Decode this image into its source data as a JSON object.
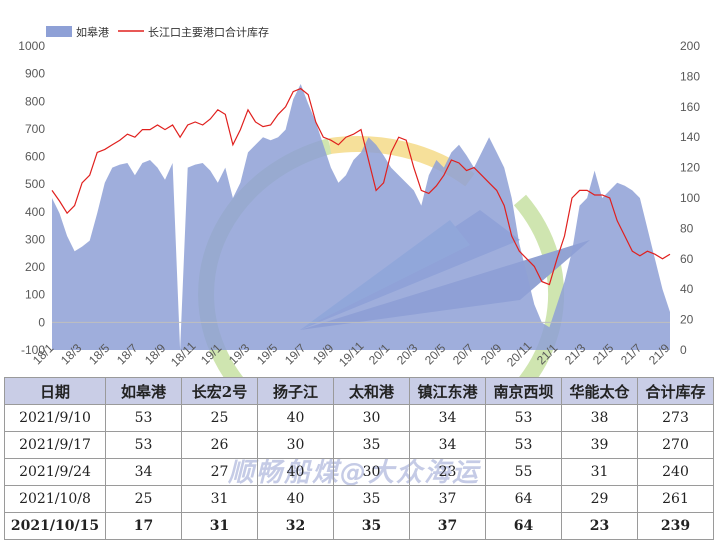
{
  "chart_data": {
    "type": "area",
    "legend": {
      "placement": "top-left",
      "items": [
        {
          "name": "如皋港",
          "kind": "area",
          "color": "#8ea0d6"
        },
        {
          "name": "长江口主要港口合计库存",
          "kind": "line",
          "color": "#e0201e"
        }
      ]
    },
    "y_left": {
      "ticks": [
        "1000",
        "900",
        "800",
        "700",
        "600",
        "500",
        "400",
        "300",
        "200",
        "100",
        "0",
        "-100"
      ],
      "min": -100,
      "max": 1000
    },
    "y_right": {
      "ticks": [
        "200",
        "180",
        "160",
        "140",
        "120",
        "100",
        "80",
        "60",
        "40",
        "20",
        "0"
      ],
      "min": 0,
      "max": 200
    },
    "x_ticks": [
      "18/1",
      "18/3",
      "18/5",
      "18/7",
      "18/9",
      "18/11",
      "19/1",
      "19/3",
      "19/5",
      "19/7",
      "19/9",
      "19/11",
      "20/1",
      "20/3",
      "20/5",
      "20/7",
      "20/9",
      "20/11",
      "21/1",
      "21/3",
      "21/5",
      "21/7",
      "21/9"
    ],
    "series": [
      {
        "name": "如皋港",
        "axis": "right",
        "values": [
          100,
          90,
          75,
          65,
          68,
          72,
          90,
          110,
          120,
          122,
          123,
          115,
          123,
          125,
          120,
          112,
          123,
          0,
          120,
          122,
          123,
          118,
          110,
          120,
          100,
          110,
          130,
          135,
          140,
          138,
          140,
          145,
          165,
          175,
          162,
          150,
          135,
          120,
          110,
          115,
          125,
          130,
          140,
          135,
          128,
          120,
          115,
          110,
          105,
          95,
          115,
          125,
          120,
          130,
          135,
          128,
          120,
          130,
          140,
          130,
          120,
          100,
          70,
          50,
          30,
          18,
          15,
          30,
          45,
          65,
          95,
          100,
          118,
          100,
          105,
          110,
          108,
          105,
          100,
          80,
          60,
          40,
          25
        ]
      },
      {
        "name": "长江口主要港口合计库存",
        "axis": "right",
        "values": [
          105,
          98,
          90,
          95,
          110,
          115,
          130,
          132,
          135,
          138,
          142,
          140,
          145,
          145,
          148,
          145,
          148,
          140,
          148,
          150,
          148,
          152,
          158,
          155,
          135,
          145,
          158,
          150,
          147,
          148,
          155,
          160,
          170,
          172,
          168,
          150,
          140,
          138,
          135,
          140,
          142,
          145,
          125,
          105,
          110,
          130,
          140,
          138,
          120,
          105,
          103,
          108,
          115,
          125,
          123,
          118,
          120,
          115,
          110,
          105,
          95,
          75,
          65,
          60,
          55,
          45,
          43,
          60,
          75,
          100,
          105,
          105,
          102,
          102,
          100,
          85,
          75,
          65,
          62,
          65,
          63,
          60,
          63
        ]
      }
    ]
  },
  "table": {
    "headers": [
      "日期",
      "如皋港",
      "长宏2号",
      "扬子江",
      "太和港",
      "镇江东港",
      "南京西坝",
      "华能太仓",
      "合计库存"
    ],
    "rows": [
      [
        "2021/9/10",
        "53",
        "25",
        "40",
        "30",
        "34",
        "53",
        "38",
        "273"
      ],
      [
        "2021/9/17",
        "53",
        "26",
        "30",
        "35",
        "34",
        "53",
        "39",
        "270"
      ],
      [
        "2021/9/24",
        "34",
        "27",
        "40",
        "30",
        "23",
        "55",
        "31",
        "240"
      ],
      [
        "2021/10/8",
        "25",
        "31",
        "40",
        "35",
        "37",
        "64",
        "29",
        "261"
      ],
      [
        "2021/10/15",
        "17",
        "31",
        "32",
        "35",
        "37",
        "64",
        "23",
        "239"
      ]
    ]
  },
  "watermark": "顺畅船煤@大众海运"
}
